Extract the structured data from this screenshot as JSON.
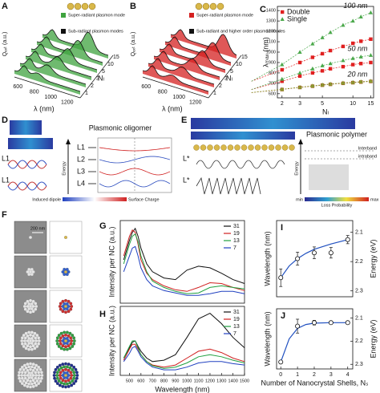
{
  "panels": {
    "A": {
      "label": "A",
      "legend": [
        "Super-radiant plasmon mode",
        "Sub-radiant plasmon modes"
      ],
      "ylabel": "Qₑₓₜ (a.u.)",
      "xlabel": "λ (nm)",
      "xticks": [
        "600",
        "800",
        "1000",
        "1200"
      ],
      "zlabel": "Nₗ",
      "zticks": [
        "1",
        "2",
        "3",
        "5",
        "10",
        "15"
      ]
    },
    "B": {
      "label": "B",
      "legend": [
        "Super-radiant plasmon mode",
        "Sub-radiant and higher order plasmon modes"
      ],
      "ylabel": "Qₑₓₜ (a.u.)",
      "xlabel": "λ (nm)",
      "xticks": [
        "600",
        "800",
        "1000",
        "1200"
      ],
      "zlabel": "Nₗ",
      "zticks": [
        "1",
        "2",
        "3",
        "5",
        "10",
        "15"
      ]
    },
    "D": {
      "label": "D",
      "title": "Plasmonic oligomer",
      "energy": "Energy",
      "levels": [
        "L1",
        "L2",
        "L3",
        "L4"
      ],
      "side_labels": [
        "L1",
        "L1"
      ],
      "colorbar": [
        "Induced dipole",
        "Surface Charge"
      ]
    },
    "E": {
      "label": "E",
      "title": "Plasmonic polymer",
      "energy": "Energy",
      "bands": [
        "Interband",
        "intraband"
      ],
      "side_labels": [
        "L*",
        "L*"
      ],
      "colorbar": [
        "min",
        "Loss Probability",
        "max"
      ]
    },
    "F": {
      "label": "F",
      "scale": "200 nm"
    }
  },
  "chart_data": [
    {
      "type": "line",
      "panel": "C",
      "ylabel": "λₘₐₓ (nm)",
      "xlabel": "Nₗ",
      "xscale": "log",
      "x": [
        1,
        2,
        3,
        4,
        5,
        6,
        8,
        10,
        12,
        15
      ],
      "xlim": [
        1.8,
        16
      ],
      "xticks": [
        2,
        3,
        5,
        10,
        15
      ],
      "ylim": [
        560,
        1440
      ],
      "yticks": [
        600,
        700,
        800,
        900,
        1000,
        1100,
        1200,
        1300,
        1400
      ],
      "annotations": [
        "100 nm",
        "50 nm",
        "20 nm"
      ],
      "series": [
        {
          "name": "Double",
          "color": "#e02020",
          "marker": "square",
          "values": [
            720,
            830,
            900,
            950,
            985,
            1015,
            1055,
            1085,
            1105,
            1125
          ]
        },
        {
          "name": "Single",
          "color": "#4aa84a",
          "marker": "triangle",
          "values": [
            720,
            880,
            1000,
            1080,
            1140,
            1190,
            1260,
            1300,
            1340,
            1380
          ]
        },
        {
          "name": "Double",
          "color": "#e02020",
          "marker": "square",
          "values": [
            640,
            720,
            770,
            800,
            820,
            840,
            860,
            880,
            890,
            900
          ]
        },
        {
          "name": "Single",
          "color": "#4aa84a",
          "marker": "triangle",
          "values": [
            640,
            740,
            800,
            840,
            870,
            890,
            920,
            940,
            955,
            970
          ]
        },
        {
          "name": "Double",
          "color": "#a06020",
          "marker": "square",
          "values": [
            610,
            640,
            660,
            672,
            682,
            690,
            700,
            706,
            712,
            718
          ]
        },
        {
          "name": "Single",
          "color": "#8a9a30",
          "marker": "triangle",
          "values": [
            612,
            643,
            663,
            676,
            686,
            694,
            704,
            710,
            716,
            722
          ]
        }
      ]
    },
    {
      "type": "line",
      "panel": "G",
      "ylabel": "Intensity per NC (a.u.)",
      "x": [
        450,
        500,
        525,
        550,
        575,
        600,
        650,
        700,
        800,
        900,
        1000,
        1100,
        1200,
        1300,
        1400,
        1500
      ],
      "xlim": [
        420,
        1500
      ],
      "ylim": [
        0,
        1.05
      ],
      "series": [
        {
          "name": "31",
          "color": "#111111",
          "values": [
            0.55,
            0.8,
            0.9,
            0.95,
            0.85,
            0.7,
            0.5,
            0.4,
            0.32,
            0.3,
            0.42,
            0.47,
            0.45,
            0.38,
            0.3,
            0.25
          ]
        },
        {
          "name": "19",
          "color": "#d02020",
          "values": [
            0.6,
            0.85,
            0.93,
            0.9,
            0.75,
            0.55,
            0.38,
            0.3,
            0.22,
            0.17,
            0.15,
            0.2,
            0.26,
            0.25,
            0.2,
            0.16
          ]
        },
        {
          "name": "13",
          "color": "#20a040",
          "values": [
            0.5,
            0.75,
            0.85,
            0.88,
            0.78,
            0.6,
            0.4,
            0.28,
            0.2,
            0.15,
            0.12,
            0.13,
            0.2,
            0.22,
            0.2,
            0.18
          ]
        },
        {
          "name": "7",
          "color": "#2040c0",
          "values": [
            0.4,
            0.6,
            0.7,
            0.72,
            0.6,
            0.45,
            0.3,
            0.22,
            0.16,
            0.13,
            0.1,
            0.1,
            0.12,
            0.15,
            0.15,
            0.12
          ]
        }
      ]
    },
    {
      "type": "line",
      "panel": "H",
      "ylabel": "Intensity per NC (a.u.)",
      "xlabel": "Wavelength (nm)",
      "x": [
        450,
        500,
        525,
        550,
        575,
        600,
        650,
        700,
        800,
        900,
        1000,
        1100,
        1200,
        1300,
        1400,
        1500
      ],
      "xlim": [
        420,
        1500
      ],
      "xticks": [
        500,
        600,
        700,
        800,
        900,
        1000,
        1100,
        1200,
        1300,
        1400,
        1500
      ],
      "ylim": [
        0,
        1.0
      ],
      "series": [
        {
          "name": "31",
          "color": "#111111",
          "values": [
            0.25,
            0.4,
            0.48,
            0.5,
            0.42,
            0.35,
            0.25,
            0.2,
            0.22,
            0.3,
            0.55,
            0.82,
            0.9,
            0.75,
            0.55,
            0.4
          ]
        },
        {
          "name": "19",
          "color": "#d02020",
          "values": [
            0.22,
            0.38,
            0.45,
            0.45,
            0.38,
            0.3,
            0.2,
            0.15,
            0.12,
            0.15,
            0.25,
            0.35,
            0.38,
            0.33,
            0.25,
            0.2
          ]
        },
        {
          "name": "13",
          "color": "#20a040",
          "values": [
            0.25,
            0.42,
            0.5,
            0.5,
            0.4,
            0.3,
            0.2,
            0.14,
            0.1,
            0.12,
            0.18,
            0.27,
            0.3,
            0.27,
            0.22,
            0.18
          ]
        },
        {
          "name": "7",
          "color": "#2040c0",
          "values": [
            0.2,
            0.32,
            0.4,
            0.42,
            0.35,
            0.27,
            0.18,
            0.12,
            0.08,
            0.08,
            0.12,
            0.18,
            0.2,
            0.2,
            0.17,
            0.15
          ]
        }
      ]
    },
    {
      "type": "errorbar",
      "panel": "I",
      "ylabel": "Wavelength (nm)",
      "y2label": "Energy (eV)",
      "x": [
        0,
        1,
        2,
        3,
        4
      ],
      "xlim": [
        -0.25,
        4.3
      ],
      "y2lim": [
        2.32,
        2.06
      ],
      "y2ticks": [
        2.1,
        2.2,
        2.3
      ],
      "series": [
        {
          "axis": "y2",
          "color": "#111111",
          "values": [
            2.255,
            2.19,
            2.17,
            2.17,
            2.125
          ],
          "errors": [
            0.03,
            0.022,
            0.02,
            0.018,
            0.014
          ]
        }
      ],
      "fit": {
        "color": "#2050c0",
        "x": [
          0,
          0.5,
          1,
          1.5,
          2,
          3,
          4
        ],
        "values": [
          2.255,
          2.215,
          2.19,
          2.172,
          2.158,
          2.14,
          2.125
        ]
      }
    },
    {
      "type": "errorbar",
      "panel": "J",
      "ylabel": "Wavelength (nm)",
      "y2label": "Energy (eV)",
      "xlabel": "Number of Nanocrystal Shells, Nₛ",
      "x": [
        0,
        1,
        2,
        3,
        4
      ],
      "xlim": [
        -0.25,
        4.3
      ],
      "xticks": [
        0,
        1,
        2,
        3,
        4
      ],
      "y2lim": [
        2.32,
        2.06
      ],
      "y2ticks": [
        2.1,
        2.2,
        2.3
      ],
      "series": [
        {
          "axis": "y2",
          "color": "#111111",
          "values": [
            2.29,
            2.135,
            2.12,
            2.12,
            2.12
          ],
          "errors": [
            0.005,
            0.03,
            0.01,
            0.006,
            0.006
          ]
        }
      ],
      "fit": {
        "color": "#2050c0",
        "x": [
          0,
          0.5,
          1,
          1.5,
          2,
          3,
          4
        ],
        "values": [
          2.29,
          2.19,
          2.145,
          2.128,
          2.122,
          2.12,
          2.12
        ]
      }
    }
  ]
}
